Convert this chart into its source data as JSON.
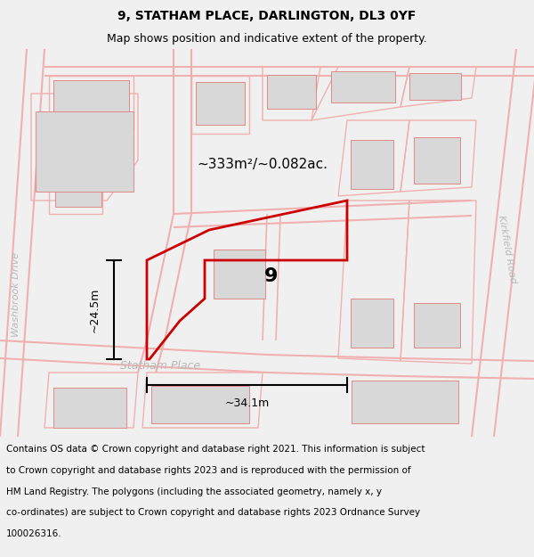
{
  "title": "9, STATHAM PLACE, DARLINGTON, DL3 0YF",
  "subtitle": "Map shows position and indicative extent of the property.",
  "footer_line1": "Contains OS data © Crown copyright and database right 2021. This information is subject",
  "footer_line2": "to Crown copyright and database rights 2023 and is reproduced with the permission of",
  "footer_line3": "HM Land Registry. The polygons (including the associated geometry, namely x, y",
  "footer_line4": "co-ordinates) are subject to Crown copyright and database rights 2023 Ordnance Survey",
  "footer_line5": "100026316.",
  "bg_color": "#f0f0f0",
  "map_bg": "#ffffff",
  "area_label": "~333m²/~0.082ac.",
  "plot_number": "9",
  "width_label": "~34.1m",
  "height_label": "~24.5m",
  "street_label": "Statham Place",
  "road_label": "Kirkfield Road",
  "washbrook_label": "Washbrook Drive",
  "outline_color": "#cc0000",
  "road_color": "#f0b0b0",
  "building_color": "#d8d8d8",
  "building_edge": "#e08888",
  "title_fontsize": 10,
  "subtitle_fontsize": 9,
  "footer_fontsize": 7.5
}
